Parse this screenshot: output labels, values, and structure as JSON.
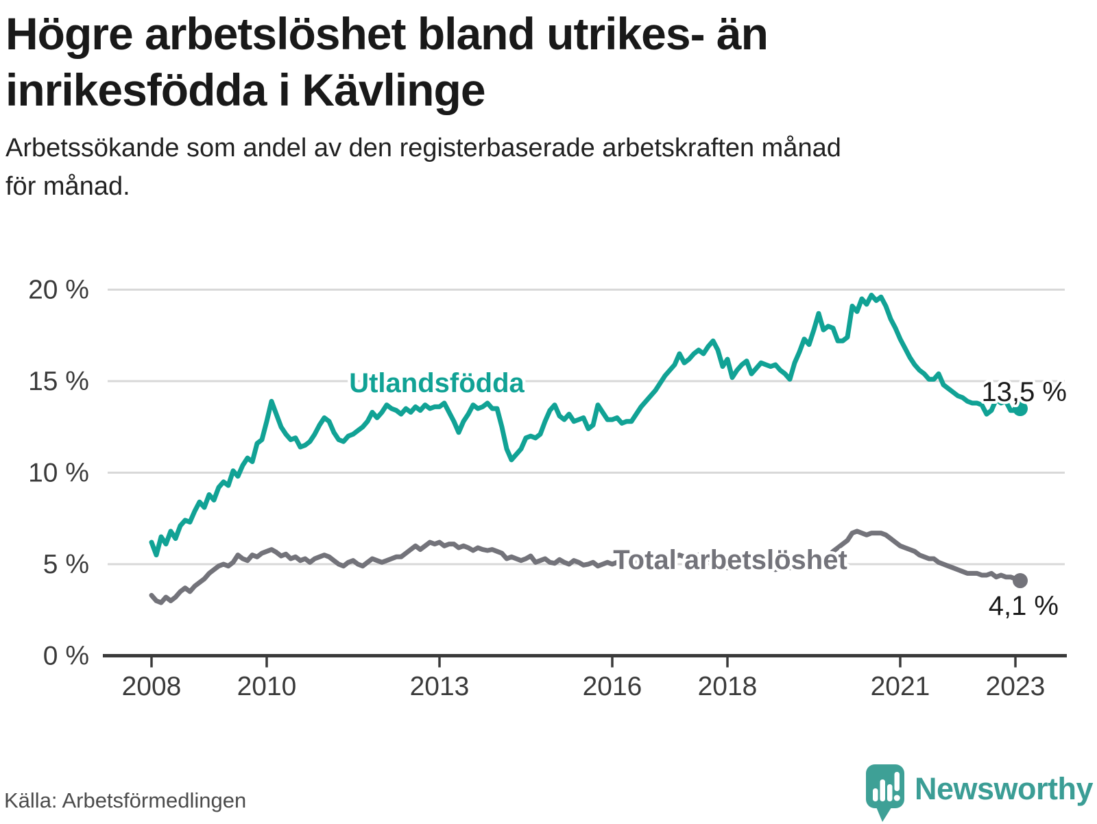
{
  "title": {
    "lines": [
      "Högre arbetslöshet bland utrikes- än",
      "inrikesfödda i Kävlinge"
    ]
  },
  "subtitle": {
    "lines": [
      "Arbetssökande som andel av den registerbaserade arbetskraften månad",
      "för månad."
    ]
  },
  "source": "Källa: Arbetsförmedlingen",
  "logo": {
    "text": "Newsworthy",
    "icon": "newsworthy-speech-bubble-bar-chart-icon",
    "color": "#3ea096"
  },
  "colors": {
    "series_foreign_born": "#11a295",
    "series_total": "#73737a",
    "grid": "#d8d8d8",
    "axis": "#3a3a3a",
    "tick_text": "#3a3a3a",
    "value_label": "#1a1a1a"
  },
  "chart_data": {
    "type": "line",
    "title": "Högre arbetslöshet bland utrikes- än inrikesfödda i Kävlinge",
    "subtitle": "Arbetssökande som andel av den registerbaserade arbetskraften månad för månad.",
    "xlabel": "",
    "ylabel": "",
    "x_start": "2008-01",
    "x_end": "2023-02",
    "frequency": "monthly",
    "ylim": [
      0,
      21
    ],
    "grid": "horizontal",
    "legend_position": "inline-labels",
    "y_ticks": [
      {
        "label": "20 %",
        "value": 20
      },
      {
        "label": "15 %",
        "value": 15
      },
      {
        "label": "10 %",
        "value": 10
      },
      {
        "label": "5 %",
        "value": 5
      },
      {
        "label": "0 %",
        "value": 0
      }
    ],
    "x_tick_years": [
      "2008",
      "2010",
      "2013",
      "2016",
      "2018",
      "2021",
      "2023"
    ],
    "series": [
      {
        "name": "Utlandsfödda",
        "color": "#11a295",
        "end_label": "13,5 %",
        "end_value": 13.5,
        "values": [
          6.2,
          5.5,
          6.5,
          6.1,
          6.8,
          6.4,
          7.1,
          7.4,
          7.3,
          7.9,
          8.4,
          8.1,
          8.8,
          8.5,
          9.2,
          9.5,
          9.3,
          10.1,
          9.8,
          10.4,
          10.8,
          10.6,
          11.6,
          11.8,
          12.8,
          13.9,
          13.2,
          12.5,
          12.1,
          11.8,
          11.9,
          11.4,
          11.5,
          11.7,
          12.1,
          12.6,
          13.0,
          12.8,
          12.2,
          11.8,
          11.7,
          12.0,
          12.1,
          12.3,
          12.5,
          12.8,
          13.3,
          13.0,
          13.3,
          13.7,
          13.5,
          13.4,
          13.2,
          13.5,
          13.3,
          13.6,
          13.4,
          13.7,
          13.5,
          13.6,
          13.6,
          13.8,
          13.3,
          12.8,
          12.2,
          12.8,
          13.2,
          13.7,
          13.5,
          13.6,
          13.8,
          13.5,
          13.5,
          12.5,
          11.3,
          10.7,
          11.0,
          11.3,
          11.9,
          12.0,
          11.9,
          12.1,
          12.8,
          13.4,
          13.7,
          13.1,
          12.9,
          13.2,
          12.8,
          12.9,
          13.0,
          12.4,
          12.6,
          13.7,
          13.3,
          12.9,
          12.9,
          13.0,
          12.7,
          12.8,
          12.8,
          13.2,
          13.6,
          13.9,
          14.2,
          14.5,
          14.9,
          15.3,
          15.6,
          15.9,
          16.5,
          16.0,
          16.2,
          16.5,
          16.7,
          16.5,
          16.9,
          17.2,
          16.7,
          15.8,
          16.2,
          15.2,
          15.6,
          15.9,
          16.1,
          15.4,
          15.7,
          16.0,
          15.9,
          15.8,
          15.9,
          15.6,
          15.4,
          15.1,
          16.0,
          16.6,
          17.3,
          17.0,
          17.8,
          18.7,
          17.8,
          18.0,
          17.9,
          17.2,
          17.2,
          17.4,
          19.1,
          18.8,
          19.5,
          19.2,
          19.7,
          19.4,
          19.6,
          19.1,
          18.4,
          17.9,
          17.3,
          16.8,
          16.3,
          15.9,
          15.6,
          15.4,
          15.1,
          15.1,
          15.4,
          14.8,
          14.6,
          14.4,
          14.2,
          14.1,
          13.9,
          13.8,
          13.8,
          13.7,
          13.2,
          13.4,
          14.0,
          13.8,
          13.9,
          13.4,
          13.4,
          13.5
        ]
      },
      {
        "name": "Total arbetslöshet",
        "color": "#73737a",
        "end_label": "4,1 %",
        "end_value": 4.1,
        "values": [
          3.3,
          3.0,
          2.9,
          3.2,
          3.0,
          3.2,
          3.5,
          3.7,
          3.5,
          3.8,
          4.0,
          4.2,
          4.5,
          4.7,
          4.9,
          5.0,
          4.9,
          5.1,
          5.5,
          5.3,
          5.2,
          5.5,
          5.4,
          5.6,
          5.7,
          5.8,
          5.65,
          5.45,
          5.55,
          5.3,
          5.4,
          5.2,
          5.3,
          5.1,
          5.3,
          5.4,
          5.5,
          5.4,
          5.2,
          5.0,
          4.9,
          5.1,
          5.2,
          5.0,
          4.9,
          5.1,
          5.3,
          5.2,
          5.1,
          5.2,
          5.3,
          5.4,
          5.4,
          5.6,
          5.8,
          6.0,
          5.8,
          6.0,
          6.2,
          6.1,
          6.2,
          6.0,
          6.1,
          6.1,
          5.9,
          6.0,
          5.9,
          5.75,
          5.9,
          5.8,
          5.75,
          5.8,
          5.7,
          5.6,
          5.3,
          5.4,
          5.3,
          5.2,
          5.3,
          5.45,
          5.1,
          5.2,
          5.3,
          5.1,
          5.05,
          5.25,
          5.1,
          5.0,
          5.2,
          5.1,
          4.95,
          5.0,
          5.1,
          4.9,
          5.0,
          5.1,
          5.0,
          5.1,
          4.9,
          5.0,
          5.1,
          5.2,
          5.0,
          4.9,
          5.1,
          5.0,
          5.2,
          5.3,
          5.3,
          5.4,
          5.5,
          5.4,
          5.3,
          5.4,
          5.5,
          5.5,
          5.3,
          5.2,
          5.0,
          4.9,
          4.8,
          4.9,
          5.0,
          4.9,
          5.0,
          5.1,
          4.9,
          4.8,
          5.0,
          4.8,
          4.7,
          4.8,
          4.9,
          4.8,
          4.9,
          5.0,
          4.9,
          5.0,
          5.1,
          5.0,
          5.2,
          5.4,
          5.7,
          5.9,
          6.1,
          6.3,
          6.7,
          6.8,
          6.7,
          6.6,
          6.7,
          6.7,
          6.7,
          6.6,
          6.4,
          6.2,
          6.0,
          5.9,
          5.8,
          5.7,
          5.5,
          5.4,
          5.3,
          5.3,
          5.1,
          5.0,
          4.9,
          4.8,
          4.7,
          4.6,
          4.5,
          4.5,
          4.5,
          4.4,
          4.4,
          4.5,
          4.3,
          4.4,
          4.3,
          4.3,
          4.2,
          4.1
        ]
      }
    ]
  }
}
